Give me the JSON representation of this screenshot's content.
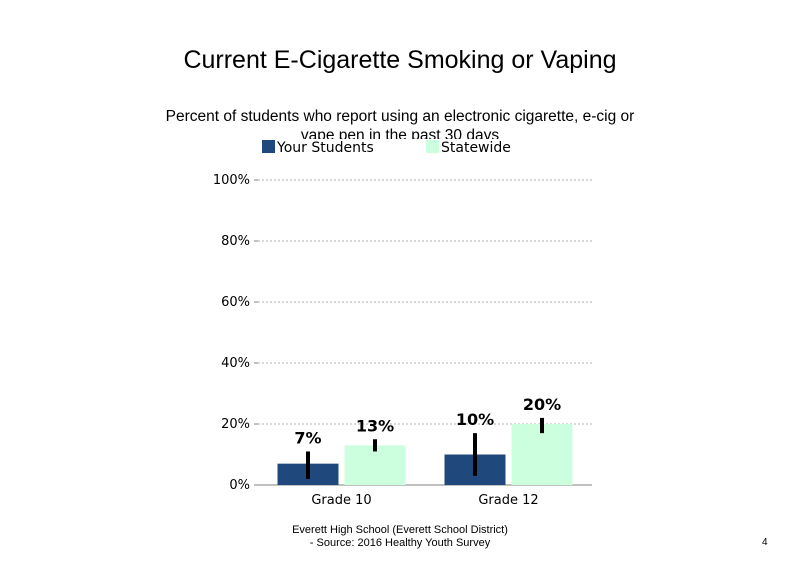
{
  "slide": {
    "footer_line1": "Everett High  School  (Everett  School District)",
    "footer_line2": "- Source: 2016 Healthy  Youth Survey",
    "page_number": "4"
  },
  "chart_data": {
    "type": "bar",
    "title": "Current E-Cigarette Smoking or Vaping",
    "subtitle": "Percent of students who report using an electronic cigarette, e-cig or vape pen in the past 30 days",
    "categories": [
      "Grade 10",
      "Grade 12"
    ],
    "series": [
      {
        "name": "Your Students",
        "color": "#1F497D",
        "values": [
          7,
          10
        ],
        "labels": [
          "7%",
          "10%"
        ],
        "error_low": [
          2,
          3
        ],
        "error_high": [
          11,
          17
        ]
      },
      {
        "name": "Statewide",
        "color": "#CCFFDD",
        "values": [
          13,
          20
        ],
        "labels": [
          "13%",
          "20%"
        ],
        "error_low": [
          11,
          17
        ],
        "error_high": [
          15,
          22
        ]
      }
    ],
    "ylim": [
      0,
      100
    ],
    "yticks": [
      0,
      20,
      40,
      60,
      80,
      100
    ],
    "ytick_labels": [
      "0%",
      "20%",
      "40%",
      "60%",
      "80%",
      "100%"
    ],
    "gridlines": "dotted",
    "legend_position": "top"
  }
}
